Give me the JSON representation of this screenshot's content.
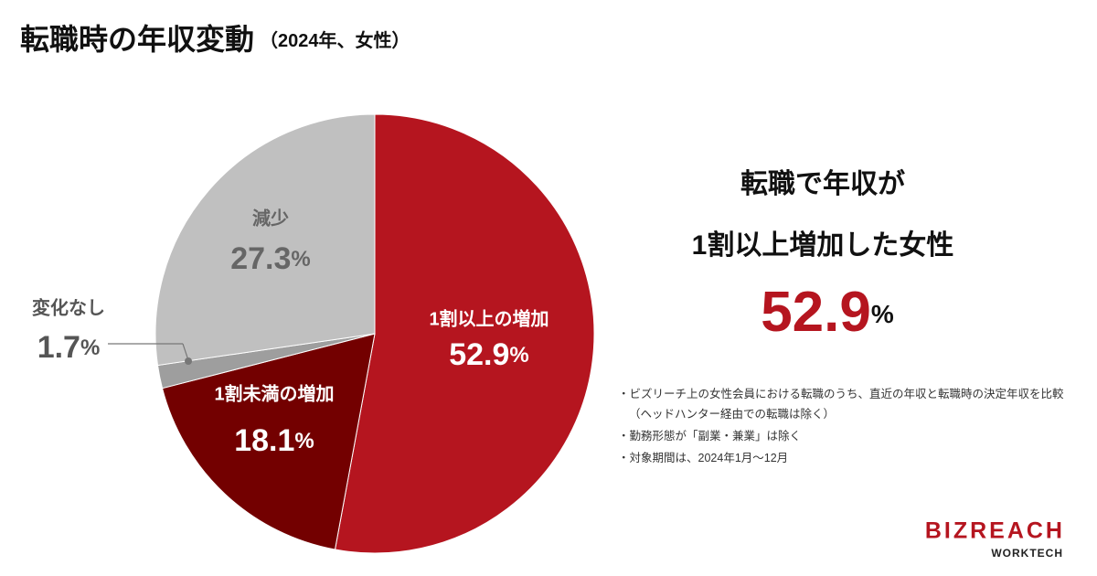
{
  "chart_data": {
    "type": "pie",
    "title": "転職時の年収変動",
    "subtitle": "（2024年、女性）",
    "categories": [
      "1割以上の増加",
      "1割未満の増加",
      "変化なし",
      "減少"
    ],
    "values": [
      52.9,
      18.1,
      1.7,
      27.3
    ],
    "unit": "%",
    "colors": [
      "#b5151f",
      "#730000",
      "#9e9e9e",
      "#c0c0c0"
    ]
  },
  "callout": {
    "lines": [
      "転職で年収が",
      "1割以上増加した女性"
    ],
    "number": 52.9,
    "unit": "%"
  },
  "notes": [
    "ビズリーチ上の女性会員における転職のうち、直近の年収と転職時の決定年収を比較（ヘッドハンター経由での転職は除く）",
    "勤務形態が「副業・兼業」は除く",
    "対象期間は、2024年1月～12月"
  ],
  "logo": {
    "brand": "BIZREACH",
    "sub": "WORKTECH"
  }
}
